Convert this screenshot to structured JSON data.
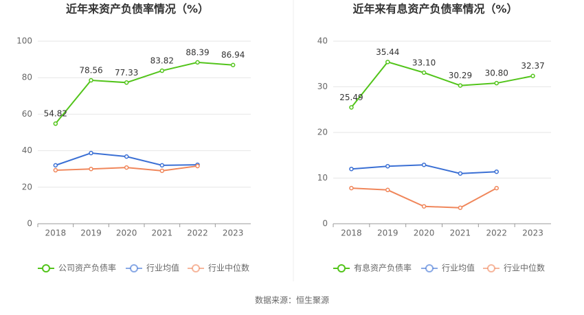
{
  "chart_data": [
    {
      "type": "line",
      "title": "近年来资产负债率情况（%）",
      "categories": [
        "2018",
        "2019",
        "2020",
        "2021",
        "2022",
        "2023"
      ],
      "series": [
        {
          "name": "公司资产负债率",
          "color": "#52c41a",
          "values": [
            54.82,
            78.56,
            77.33,
            83.82,
            88.39,
            86.94
          ],
          "value_labels": [
            "54.82",
            "78.56",
            "77.33",
            "83.82",
            "88.39",
            "86.94"
          ]
        },
        {
          "name": "行业均值",
          "color": "#3a6fd4",
          "values": [
            32.0,
            38.7,
            36.8,
            32.0,
            32.3,
            null
          ]
        },
        {
          "name": "行业中位数",
          "color": "#f0865a",
          "values": [
            29.3,
            30.0,
            30.8,
            29.0,
            31.6,
            null
          ]
        }
      ],
      "ylim": [
        0,
        100
      ],
      "yticks": [
        0,
        20,
        40,
        60,
        80,
        100
      ],
      "grid": true,
      "legend": "bottom"
    },
    {
      "type": "line",
      "title": "近年来有息资产负债率情况（%）",
      "categories": [
        "2018",
        "2019",
        "2020",
        "2021",
        "2022",
        "2023"
      ],
      "series": [
        {
          "name": "有息资产负债率",
          "color": "#52c41a",
          "values": [
            25.49,
            35.44,
            33.1,
            30.29,
            30.8,
            32.37
          ],
          "value_labels": [
            "25.49",
            "35.44",
            "33.10",
            "30.29",
            "30.80",
            "32.37"
          ]
        },
        {
          "name": "行业均值",
          "color": "#3a6fd4",
          "values": [
            12.0,
            12.6,
            12.9,
            11.0,
            11.4,
            null
          ]
        },
        {
          "name": "行业中位数",
          "color": "#f0865a",
          "values": [
            7.8,
            7.4,
            3.8,
            3.5,
            7.8,
            null
          ]
        }
      ],
      "ylim": [
        0,
        40
      ],
      "yticks": [
        0,
        10,
        20,
        30,
        40
      ],
      "grid": true,
      "legend": "bottom"
    }
  ],
  "source": "数据来源：恒生聚源"
}
